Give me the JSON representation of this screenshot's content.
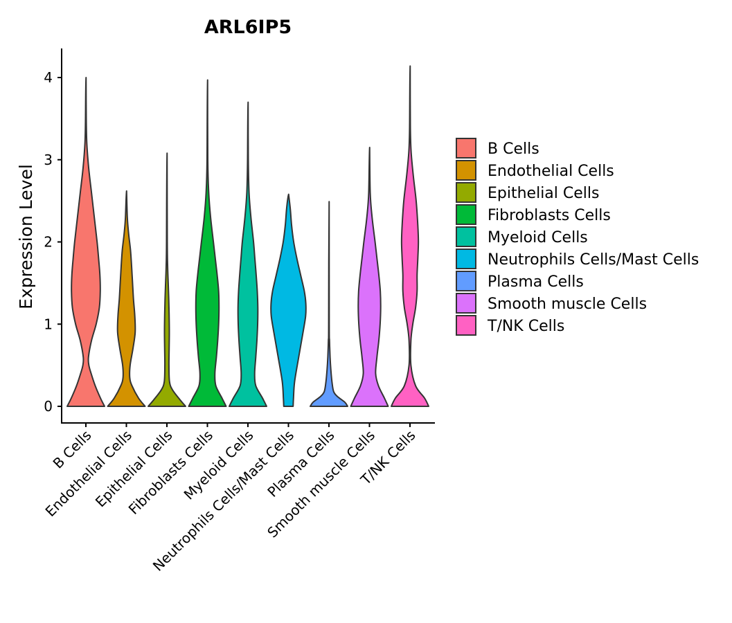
{
  "chart_data": {
    "type": "violin",
    "title": "ARL6IP5",
    "xlabel": "",
    "ylabel": "Expression Level",
    "ylim": [
      0,
      4.2
    ],
    "yticks": [
      0,
      1,
      2,
      3,
      4
    ],
    "grid": false,
    "legend_position": "right",
    "categories": [
      "B Cells",
      "Endothelial Cells",
      "Epithelial Cells",
      "Fibroblasts Cells",
      "Myeloid Cells",
      "Neutrophils Cells/Mast Cells",
      "Plasma Cells",
      "Smooth muscle Cells",
      "T/NK Cells"
    ],
    "colors": [
      "#F8766D",
      "#D39200",
      "#93AA00",
      "#00BA38",
      "#00C19F",
      "#00B9E3",
      "#619CFF",
      "#DB72FB",
      "#FF61C3"
    ],
    "max_values": [
      4.0,
      2.62,
      3.08,
      3.97,
      3.7,
      2.58,
      2.49,
      3.15,
      4.14
    ],
    "density_profiles": [
      [
        [
          0,
          1.0
        ],
        [
          0.1,
          0.78
        ],
        [
          0.25,
          0.5
        ],
        [
          0.4,
          0.28
        ],
        [
          0.5,
          0.16
        ],
        [
          0.6,
          0.14
        ],
        [
          0.8,
          0.3
        ],
        [
          1.0,
          0.55
        ],
        [
          1.2,
          0.72
        ],
        [
          1.4,
          0.77
        ],
        [
          1.6,
          0.75
        ],
        [
          1.8,
          0.68
        ],
        [
          2.0,
          0.6
        ],
        [
          2.3,
          0.45
        ],
        [
          2.6,
          0.3
        ],
        [
          2.9,
          0.15
        ],
        [
          3.2,
          0.05
        ],
        [
          3.5,
          0.02
        ],
        [
          4.0,
          0.01
        ]
      ],
      [
        [
          0,
          1.0
        ],
        [
          0.1,
          0.65
        ],
        [
          0.25,
          0.3
        ],
        [
          0.35,
          0.18
        ],
        [
          0.5,
          0.2
        ],
        [
          0.7,
          0.35
        ],
        [
          0.9,
          0.47
        ],
        [
          1.1,
          0.45
        ],
        [
          1.3,
          0.38
        ],
        [
          1.5,
          0.33
        ],
        [
          1.7,
          0.28
        ],
        [
          1.9,
          0.22
        ],
        [
          2.1,
          0.12
        ],
        [
          2.3,
          0.05
        ],
        [
          2.62,
          0.01
        ]
      ],
      [
        [
          0,
          1.0
        ],
        [
          0.08,
          0.7
        ],
        [
          0.2,
          0.3
        ],
        [
          0.3,
          0.14
        ],
        [
          0.5,
          0.11
        ],
        [
          0.7,
          0.12
        ],
        [
          0.9,
          0.13
        ],
        [
          1.1,
          0.12
        ],
        [
          1.3,
          0.1
        ],
        [
          1.5,
          0.07
        ],
        [
          1.7,
          0.04
        ],
        [
          2.0,
          0.02
        ],
        [
          3.08,
          0.01
        ]
      ],
      [
        [
          0,
          1.0
        ],
        [
          0.1,
          0.78
        ],
        [
          0.25,
          0.45
        ],
        [
          0.4,
          0.4
        ],
        [
          0.6,
          0.48
        ],
        [
          0.8,
          0.55
        ],
        [
          1.0,
          0.6
        ],
        [
          1.2,
          0.62
        ],
        [
          1.4,
          0.6
        ],
        [
          1.6,
          0.52
        ],
        [
          1.8,
          0.42
        ],
        [
          2.0,
          0.32
        ],
        [
          2.3,
          0.17
        ],
        [
          2.6,
          0.07
        ],
        [
          3.0,
          0.02
        ],
        [
          3.97,
          0.01
        ]
      ],
      [
        [
          0,
          1.0
        ],
        [
          0.1,
          0.78
        ],
        [
          0.25,
          0.42
        ],
        [
          0.4,
          0.36
        ],
        [
          0.6,
          0.42
        ],
        [
          0.8,
          0.48
        ],
        [
          1.0,
          0.52
        ],
        [
          1.2,
          0.53
        ],
        [
          1.4,
          0.5
        ],
        [
          1.6,
          0.44
        ],
        [
          1.8,
          0.37
        ],
        [
          2.0,
          0.3
        ],
        [
          2.3,
          0.16
        ],
        [
          2.6,
          0.06
        ],
        [
          3.0,
          0.02
        ],
        [
          3.7,
          0.01
        ]
      ],
      [
        [
          0,
          0.25
        ],
        [
          0.1,
          0.27
        ],
        [
          0.3,
          0.33
        ],
        [
          0.6,
          0.55
        ],
        [
          0.9,
          0.78
        ],
        [
          1.1,
          0.92
        ],
        [
          1.25,
          0.93
        ],
        [
          1.4,
          0.85
        ],
        [
          1.6,
          0.65
        ],
        [
          1.8,
          0.45
        ],
        [
          2.0,
          0.28
        ],
        [
          2.2,
          0.17
        ],
        [
          2.4,
          0.1
        ],
        [
          2.58,
          0.01
        ]
      ],
      [
        [
          0,
          1.0
        ],
        [
          0.05,
          0.85
        ],
        [
          0.12,
          0.45
        ],
        [
          0.18,
          0.25
        ],
        [
          0.3,
          0.16
        ],
        [
          0.45,
          0.1
        ],
        [
          0.6,
          0.06
        ],
        [
          0.8,
          0.03
        ],
        [
          1.0,
          0.015
        ],
        [
          2.49,
          0.01
        ]
      ],
      [
        [
          0,
          1.0
        ],
        [
          0.1,
          0.8
        ],
        [
          0.25,
          0.48
        ],
        [
          0.4,
          0.33
        ],
        [
          0.6,
          0.4
        ],
        [
          0.8,
          0.5
        ],
        [
          1.0,
          0.57
        ],
        [
          1.2,
          0.6
        ],
        [
          1.4,
          0.58
        ],
        [
          1.6,
          0.5
        ],
        [
          1.8,
          0.4
        ],
        [
          2.0,
          0.3
        ],
        [
          2.3,
          0.14
        ],
        [
          2.6,
          0.04
        ],
        [
          3.15,
          0.01
        ]
      ],
      [
        [
          0,
          1.0
        ],
        [
          0.1,
          0.78
        ],
        [
          0.25,
          0.3
        ],
        [
          0.5,
          0.05
        ],
        [
          0.8,
          0.05
        ],
        [
          1.0,
          0.15
        ],
        [
          1.2,
          0.3
        ],
        [
          1.4,
          0.38
        ],
        [
          1.6,
          0.38
        ],
        [
          1.8,
          0.42
        ],
        [
          2.0,
          0.45
        ],
        [
          2.2,
          0.42
        ],
        [
          2.5,
          0.33
        ],
        [
          2.8,
          0.18
        ],
        [
          3.1,
          0.06
        ],
        [
          3.4,
          0.02
        ],
        [
          4.14,
          0.01
        ]
      ]
    ]
  }
}
